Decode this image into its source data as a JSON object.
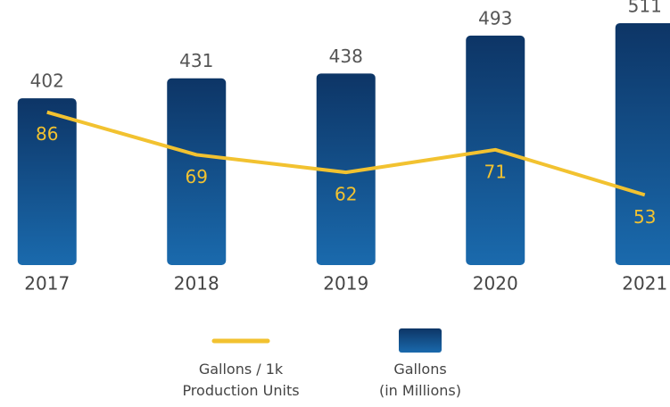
{
  "chart_data": {
    "type": "bar-line",
    "categories": [
      "2017",
      "2018",
      "2019",
      "2020",
      "2021"
    ],
    "series": [
      {
        "name": "Gallons / 1k\nProduction Units",
        "type": "line",
        "axis": "y2",
        "color": "#f2c230",
        "values": [
          86,
          69,
          62,
          71,
          53
        ]
      },
      {
        "name": "Gallons\n(in Millions)",
        "type": "bar",
        "color": "#1a6aad",
        "values": [
          402,
          431,
          438,
          493,
          511
        ]
      }
    ],
    "ylim": [
      160,
      520
    ],
    "y2lim": [
      25,
      124
    ]
  }
}
